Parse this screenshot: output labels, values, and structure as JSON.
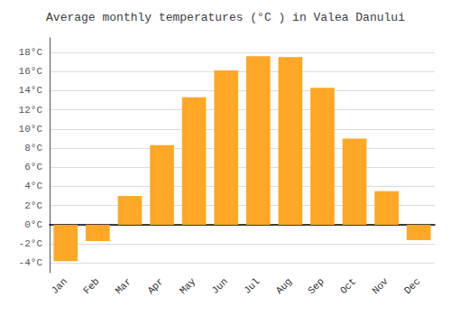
{
  "chart_data": {
    "type": "bar",
    "title": "Average monthly temperatures (°C ) in Valea Danului",
    "categories": [
      "Jan",
      "Feb",
      "Mar",
      "Apr",
      "May",
      "Jun",
      "Jul",
      "Aug",
      "Sep",
      "Oct",
      "Nov",
      "Dec"
    ],
    "values": [
      -3.8,
      -1.7,
      3.0,
      8.3,
      13.3,
      16.1,
      17.6,
      17.5,
      14.3,
      9.0,
      3.5,
      -1.6
    ],
    "color": "#FFA726",
    "ylim": [
      -5,
      19.5
    ],
    "yticks": [
      {
        "value": -4,
        "label": "-4°C"
      },
      {
        "value": -2,
        "label": "-2°C"
      },
      {
        "value": 0,
        "label": "0°C"
      },
      {
        "value": 2,
        "label": "2°C"
      },
      {
        "value": 4,
        "label": "4°C"
      },
      {
        "value": 6,
        "label": "6°C"
      },
      {
        "value": 8,
        "label": "8°C"
      },
      {
        "value": 10,
        "label": "10°C"
      },
      {
        "value": 12,
        "label": "12°C"
      },
      {
        "value": 14,
        "label": "14°C"
      },
      {
        "value": 16,
        "label": "16°C"
      },
      {
        "value": 18,
        "label": "18°C"
      }
    ],
    "grid": true
  }
}
